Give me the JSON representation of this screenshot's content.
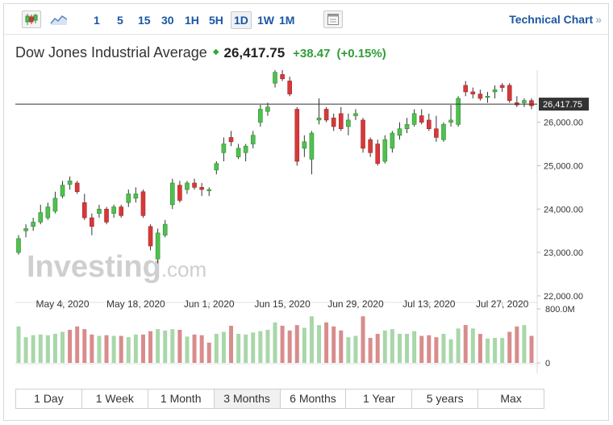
{
  "toolbar": {
    "icons": [
      "candlestick-chart-icon",
      "area-chart-icon",
      "indicators-icon"
    ],
    "timeframes": [
      "1",
      "5",
      "15",
      "30",
      "1H",
      "5H",
      "1D",
      "1W",
      "1M"
    ],
    "active_timeframe": "1D",
    "technical_link": "Technical Chart",
    "technical_chevron": "»"
  },
  "header": {
    "name": "Dow Jones Industrial Average",
    "price": "26,417.75",
    "change": "+38.47",
    "change_pct": "(+0.15%)"
  },
  "watermark": {
    "main": "Investing",
    "suffix": ".com"
  },
  "range_tabs": [
    "1 Day",
    "1 Week",
    "1 Month",
    "3 Months",
    "6 Months",
    "1 Year",
    "5 years",
    "Max"
  ],
  "colors": {
    "up": "#4fc14f",
    "down": "#d6393a",
    "up_volume": "#a8d7a9",
    "down_volume": "#d98c8c",
    "link": "#1a56a4"
  },
  "chart_data": {
    "type": "candlestick",
    "x_tick_labels": [
      "May 4, 2020",
      "May 18, 2020",
      "Jun 1, 2020",
      "Jun 15, 2020",
      "Jun 29, 2020",
      "Jul 13, 2020",
      "Jul 27, 2020"
    ],
    "y_tick_labels": [
      "22,000.00",
      "23,000.00",
      "24,000.00",
      "25,000.00",
      "26,000.00"
    ],
    "ylim": [
      21850,
      27200
    ],
    "current_price": 26417.75,
    "current_price_label": "26,417.75",
    "volume_tick_labels": [
      "800.0M",
      "0"
    ],
    "volume_max": 800,
    "candles": [
      {
        "o": 23000,
        "h": 23400,
        "l": 22950,
        "c": 23320
      },
      {
        "o": 23500,
        "h": 23650,
        "l": 23350,
        "c": 23550
      },
      {
        "o": 23600,
        "h": 23800,
        "l": 23500,
        "c": 23700
      },
      {
        "o": 23700,
        "h": 24100,
        "l": 23650,
        "c": 23920
      },
      {
        "o": 23800,
        "h": 24150,
        "l": 23750,
        "c": 24050
      },
      {
        "o": 23950,
        "h": 24400,
        "l": 23900,
        "c": 24250
      },
      {
        "o": 24300,
        "h": 24650,
        "l": 24250,
        "c": 24550
      },
      {
        "o": 24570,
        "h": 24750,
        "l": 24450,
        "c": 24650
      },
      {
        "o": 24600,
        "h": 24650,
        "l": 24350,
        "c": 24400
      },
      {
        "o": 24150,
        "h": 24350,
        "l": 23750,
        "c": 23800
      },
      {
        "o": 23800,
        "h": 23900,
        "l": 23400,
        "c": 23600
      },
      {
        "o": 23900,
        "h": 24100,
        "l": 23800,
        "c": 24000
      },
      {
        "o": 24000,
        "h": 24050,
        "l": 23650,
        "c": 23700
      },
      {
        "o": 23900,
        "h": 24100,
        "l": 23800,
        "c": 24050
      },
      {
        "o": 24050,
        "h": 24100,
        "l": 23800,
        "c": 23850
      },
      {
        "o": 24150,
        "h": 24450,
        "l": 24050,
        "c": 24350
      },
      {
        "o": 24250,
        "h": 24500,
        "l": 24150,
        "c": 24350
      },
      {
        "o": 24400,
        "h": 24450,
        "l": 23800,
        "c": 23850
      },
      {
        "o": 23600,
        "h": 23650,
        "l": 23050,
        "c": 23150
      },
      {
        "o": 22850,
        "h": 23550,
        "l": 22750,
        "c": 23450
      },
      {
        "o": 23400,
        "h": 23750,
        "l": 23350,
        "c": 23650
      },
      {
        "o": 24100,
        "h": 24700,
        "l": 24000,
        "c": 24600
      },
      {
        "o": 24550,
        "h": 24650,
        "l": 24150,
        "c": 24200
      },
      {
        "o": 24450,
        "h": 24650,
        "l": 24350,
        "c": 24600
      },
      {
        "o": 24600,
        "h": 24700,
        "l": 24450,
        "c": 24500
      },
      {
        "o": 24500,
        "h": 24600,
        "l": 24300,
        "c": 24450
      },
      {
        "o": 24450,
        "h": 24500,
        "l": 24300,
        "c": 24450
      },
      {
        "o": 24900,
        "h": 25100,
        "l": 24800,
        "c": 25050
      },
      {
        "o": 25300,
        "h": 25650,
        "l": 25100,
        "c": 25500
      },
      {
        "o": 25650,
        "h": 25800,
        "l": 25450,
        "c": 25550
      },
      {
        "o": 25200,
        "h": 25500,
        "l": 25150,
        "c": 25400
      },
      {
        "o": 25300,
        "h": 25500,
        "l": 25100,
        "c": 25450
      },
      {
        "o": 25500,
        "h": 25800,
        "l": 25400,
        "c": 25700
      },
      {
        "o": 26000,
        "h": 26400,
        "l": 25900,
        "c": 26300
      },
      {
        "o": 26250,
        "h": 26450,
        "l": 26150,
        "c": 26350
      },
      {
        "o": 26900,
        "h": 27200,
        "l": 26800,
        "c": 27150
      },
      {
        "o": 27100,
        "h": 27200,
        "l": 26950,
        "c": 27000
      },
      {
        "o": 26950,
        "h": 27050,
        "l": 26600,
        "c": 26650
      },
      {
        "o": 26300,
        "h": 26350,
        "l": 25000,
        "c": 25100
      },
      {
        "o": 25400,
        "h": 25700,
        "l": 25200,
        "c": 25550
      },
      {
        "o": 25150,
        "h": 25800,
        "l": 24800,
        "c": 25750
      },
      {
        "o": 26050,
        "h": 26550,
        "l": 25950,
        "c": 26100
      },
      {
        "o": 26300,
        "h": 26350,
        "l": 26000,
        "c": 26050
      },
      {
        "o": 26100,
        "h": 26200,
        "l": 25800,
        "c": 25900
      },
      {
        "o": 26200,
        "h": 26350,
        "l": 25800,
        "c": 25850
      },
      {
        "o": 25900,
        "h": 26200,
        "l": 25700,
        "c": 26050
      },
      {
        "o": 26150,
        "h": 26300,
        "l": 26050,
        "c": 26200
      },
      {
        "o": 26050,
        "h": 26100,
        "l": 25300,
        "c": 25400
      },
      {
        "o": 25600,
        "h": 25650,
        "l": 25200,
        "c": 25300
      },
      {
        "o": 25500,
        "h": 25600,
        "l": 25000,
        "c": 25050
      },
      {
        "o": 25100,
        "h": 25700,
        "l": 25050,
        "c": 25600
      },
      {
        "o": 25400,
        "h": 25800,
        "l": 25300,
        "c": 25750
      },
      {
        "o": 25700,
        "h": 26000,
        "l": 25600,
        "c": 25850
      },
      {
        "o": 25850,
        "h": 26100,
        "l": 25750,
        "c": 25950
      },
      {
        "o": 25950,
        "h": 26300,
        "l": 25900,
        "c": 26200
      },
      {
        "o": 26150,
        "h": 26300,
        "l": 25950,
        "c": 26000
      },
      {
        "o": 26050,
        "h": 26200,
        "l": 25800,
        "c": 25850
      },
      {
        "o": 25850,
        "h": 26150,
        "l": 25550,
        "c": 25650
      },
      {
        "o": 25600,
        "h": 26000,
        "l": 25550,
        "c": 25950
      },
      {
        "o": 26000,
        "h": 26400,
        "l": 25900,
        "c": 26050
      },
      {
        "o": 25950,
        "h": 26600,
        "l": 25900,
        "c": 26550
      },
      {
        "o": 26850,
        "h": 26950,
        "l": 26600,
        "c": 26700
      },
      {
        "o": 26700,
        "h": 26800,
        "l": 26550,
        "c": 26650
      },
      {
        "o": 26650,
        "h": 26750,
        "l": 26500,
        "c": 26550
      },
      {
        "o": 26600,
        "h": 26700,
        "l": 26450,
        "c": 26600
      },
      {
        "o": 26700,
        "h": 26850,
        "l": 26550,
        "c": 26750
      },
      {
        "o": 26850,
        "h": 26900,
        "l": 26700,
        "c": 26800
      },
      {
        "o": 26850,
        "h": 26900,
        "l": 26450,
        "c": 26500
      },
      {
        "o": 26450,
        "h": 26600,
        "l": 26350,
        "c": 26400
      },
      {
        "o": 26450,
        "h": 26550,
        "l": 26350,
        "c": 26500
      },
      {
        "o": 26500,
        "h": 26550,
        "l": 26300,
        "c": 26380
      }
    ],
    "volumes": [
      540,
      380,
      410,
      420,
      410,
      430,
      460,
      490,
      540,
      500,
      420,
      400,
      410,
      400,
      400,
      380,
      420,
      420,
      470,
      500,
      480,
      500,
      490,
      390,
      420,
      410,
      300,
      430,
      460,
      550,
      430,
      420,
      450,
      470,
      490,
      600,
      550,
      480,
      560,
      520,
      690,
      560,
      600,
      540,
      480,
      380,
      400,
      690,
      370,
      430,
      480,
      500,
      430,
      430,
      470,
      400,
      410,
      380,
      430,
      350,
      510,
      560,
      510,
      430,
      360,
      370,
      370,
      460,
      540,
      560,
      400
    ],
    "volume_up": [
      true,
      true,
      true,
      true,
      true,
      true,
      true,
      false,
      false,
      false,
      false,
      true,
      false,
      true,
      false,
      true,
      true,
      false,
      false,
      true,
      true,
      true,
      false,
      true,
      false,
      false,
      false,
      true,
      true,
      false,
      true,
      true,
      true,
      true,
      true,
      true,
      false,
      false,
      false,
      true,
      true,
      true,
      false,
      false,
      false,
      true,
      true,
      false,
      false,
      false,
      true,
      true,
      true,
      true,
      true,
      false,
      false,
      false,
      true,
      true,
      true,
      false,
      true,
      false,
      true,
      true,
      true,
      false,
      false,
      true,
      false
    ]
  }
}
